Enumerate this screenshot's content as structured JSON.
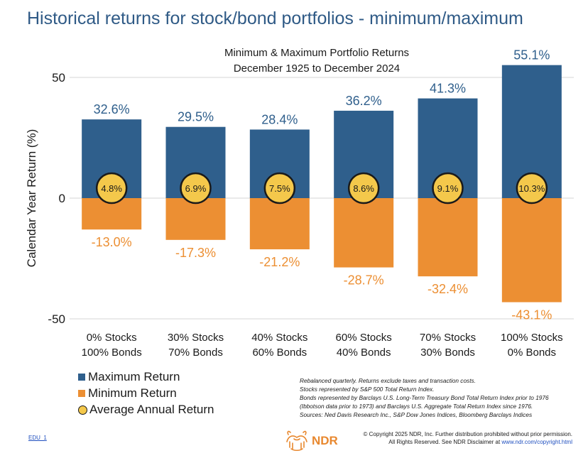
{
  "title": "Historical returns for stock/bond portfolios - minimum/maximum",
  "chart_data": {
    "type": "bar",
    "title": "Minimum & Maximum Portfolio Returns",
    "subtitle": "December 1925 to December 2024",
    "ylabel": "Calendar Year Return (%)",
    "xlabel": "",
    "ylim": [
      -50,
      55.1
    ],
    "yticks": [
      50,
      0,
      -50
    ],
    "categories": [
      [
        "0% Stocks",
        "100% Bonds"
      ],
      [
        "30% Stocks",
        "70% Bonds"
      ],
      [
        "40% Stocks",
        "60% Bonds"
      ],
      [
        "60% Stocks",
        "40% Bonds"
      ],
      [
        "70% Stocks",
        "30% Bonds"
      ],
      [
        "100% Stocks",
        "0% Bonds"
      ]
    ],
    "series": [
      {
        "name": "Maximum Return",
        "color": "#2f5f8c",
        "values": [
          32.6,
          29.5,
          28.4,
          36.2,
          41.3,
          55.1
        ],
        "labels": [
          "32.6%",
          "29.5%",
          "28.4%",
          "36.2%",
          "41.3%",
          "55.1%"
        ]
      },
      {
        "name": "Minimum Return",
        "color": "#ec8f33",
        "values": [
          -13.0,
          -17.3,
          -21.2,
          -28.7,
          -32.4,
          -43.1
        ],
        "labels": [
          "-13.0%",
          "-17.3%",
          "-21.2%",
          "-28.7%",
          "-32.4%",
          "-43.1%"
        ]
      },
      {
        "name": "Average Annual Return",
        "color": "#f4c84b",
        "values": [
          4.8,
          6.9,
          7.5,
          8.6,
          9.1,
          10.3
        ],
        "labels": [
          "4.8%",
          "6.9%",
          "7.5%",
          "8.6%",
          "9.1%",
          "10.3%"
        ]
      }
    ],
    "grid": true,
    "legend_position": "bottom-left"
  },
  "legend": {
    "max_label": "Maximum Return",
    "min_label": "Minimum Return",
    "avg_label": "Average Annual Return"
  },
  "notes": [
    "Rebalanced quarterly. Returns exclude taxes and transaction costs.",
    "Stocks represented by S&P 500 Total Return Index.",
    "Bonds represented by Barclays U.S. Long-Term Treasury Bond Total Return Index prior to 1976",
    "(Ibbotson data prior to 1973) and Barclays U.S. Aggregate Total Return Index since 1976.",
    "Sources: Ned Davis Research Inc., S&P Dow Jones Indices, Bloomberg Barclays Indices"
  ],
  "footer": {
    "edu_code": "EDU_1",
    "brand": "NDR",
    "copyright_line1": "© Copyright 2025 NDR, Inc. Further distribution prohibited without prior permission.",
    "copyright_line2": "All Rights Reserved. See NDR Disclaimer at",
    "copyright_link": "www.ndr.com/copyright.html"
  },
  "colors": {
    "title": "#2f5a86",
    "max_bar": "#2f5f8c",
    "min_bar": "#ec8f33",
    "avg_dot": "#f4c84b",
    "brand": "#e8882f"
  },
  "icons": [
    "bull-bear-logo-icon"
  ]
}
